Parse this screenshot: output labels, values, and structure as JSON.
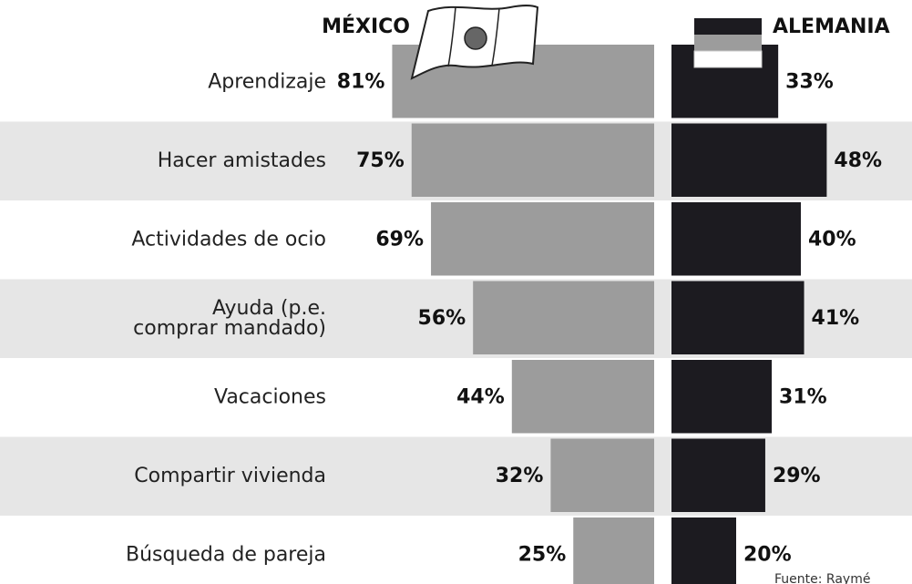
{
  "chart_data": {
    "type": "butterfly-bar",
    "categories": [
      "Aprendizaje",
      "Hacer amistades",
      "Actividades de ocio",
      "Ayuda (p.e.\ncomprar mandado)",
      "Vacaciones",
      "Compartir vivienda",
      "Búsqueda de pareja"
    ],
    "series": [
      {
        "name": "MÉXICO",
        "color": "#9c9c9c",
        "values": [
          81,
          75,
          69,
          56,
          44,
          32,
          25
        ],
        "value_labels": [
          "81%",
          "75%",
          "69%",
          "56%",
          "44%",
          "32%",
          "25%"
        ]
      },
      {
        "name": "ALEMANIA",
        "color": "#1c1b20",
        "values": [
          33,
          48,
          40,
          41,
          31,
          29,
          20
        ],
        "value_labels": [
          "33%",
          "48%",
          "40%",
          "41%",
          "31%",
          "29%",
          "20%"
        ]
      }
    ],
    "source": "Fuente: Raymé"
  }
}
